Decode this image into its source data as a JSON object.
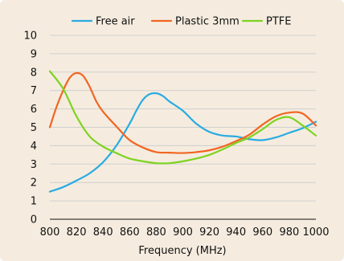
{
  "chart_data": {
    "type": "line",
    "title": "",
    "xlabel": "Frequency (MHz)",
    "ylabel": "",
    "xlim": [
      800,
      1000
    ],
    "ylim": [
      0,
      10
    ],
    "xticks": [
      800,
      820,
      840,
      860,
      880,
      900,
      920,
      940,
      960,
      980,
      1000
    ],
    "yticks": [
      0,
      1,
      2,
      3,
      4,
      5,
      6,
      7,
      8,
      9,
      10
    ],
    "grid": "horizontal",
    "legend_position": "top",
    "series": [
      {
        "name": "Free air",
        "color": "#29abe2",
        "x": [
          800,
          810,
          820,
          830,
          840,
          850,
          860,
          865,
          870,
          875,
          880,
          885,
          890,
          900,
          910,
          920,
          930,
          940,
          950,
          960,
          970,
          980,
          990,
          1000
        ],
        "y": [
          1.5,
          1.75,
          2.1,
          2.5,
          3.1,
          4.0,
          5.2,
          5.9,
          6.5,
          6.8,
          6.85,
          6.7,
          6.4,
          5.9,
          5.2,
          4.75,
          4.55,
          4.5,
          4.35,
          4.3,
          4.45,
          4.7,
          4.95,
          5.3
        ]
      },
      {
        "name": "Plastic 3mm",
        "color": "#f26522",
        "x": [
          800,
          805,
          810,
          815,
          820,
          825,
          830,
          835,
          840,
          850,
          860,
          870,
          880,
          890,
          900,
          910,
          920,
          930,
          940,
          950,
          960,
          970,
          980,
          990,
          1000
        ],
        "y": [
          5.0,
          6.1,
          7.0,
          7.7,
          7.95,
          7.8,
          7.2,
          6.4,
          5.85,
          5.05,
          4.3,
          3.9,
          3.65,
          3.62,
          3.6,
          3.65,
          3.75,
          3.95,
          4.25,
          4.6,
          5.15,
          5.6,
          5.8,
          5.75,
          5.1
        ]
      },
      {
        "name": "PTFE",
        "color": "#7ed321",
        "x": [
          800,
          810,
          820,
          830,
          840,
          850,
          860,
          870,
          880,
          890,
          900,
          910,
          920,
          930,
          940,
          950,
          960,
          970,
          980,
          990,
          1000
        ],
        "y": [
          8.05,
          7.1,
          5.6,
          4.5,
          3.95,
          3.6,
          3.3,
          3.15,
          3.05,
          3.05,
          3.15,
          3.3,
          3.5,
          3.8,
          4.15,
          4.45,
          4.9,
          5.4,
          5.55,
          5.1,
          4.55
        ]
      }
    ]
  }
}
